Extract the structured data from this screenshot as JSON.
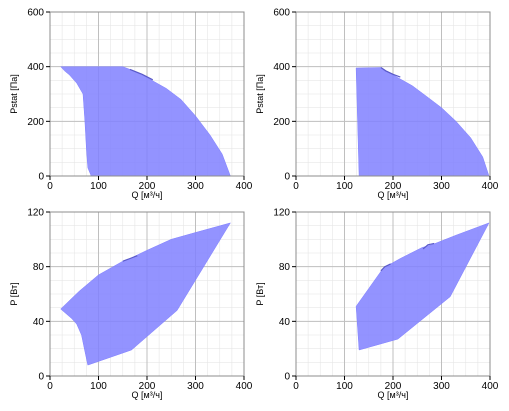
{
  "style": {
    "fill_color": "#8080ff",
    "fill_opacity": 0.85,
    "edge_color": "#5a5ac8",
    "grid_major_color": "#bfbfbf",
    "grid_minor_color": "#e6e6e6",
    "frame_color": "#8c8c8c"
  },
  "chart_data": [
    {
      "type": "area",
      "xlabel": "Q [м³/ч]",
      "ylabel": "Pstat [Па]",
      "xlim": [
        0,
        400
      ],
      "ylim": [
        0,
        600
      ],
      "xticks": [
        0,
        100,
        200,
        300,
        400
      ],
      "yticks": [
        0,
        200,
        400,
        600
      ],
      "xminor": 25,
      "yminor": 50,
      "grid": true,
      "region": [
        [
          22,
          400
        ],
        [
          150,
          400
        ],
        [
          165,
          390
        ],
        [
          200,
          360
        ],
        [
          240,
          320
        ],
        [
          270,
          280
        ],
        [
          300,
          220
        ],
        [
          330,
          150
        ],
        [
          355,
          80
        ],
        [
          372,
          0
        ],
        [
          85,
          0
        ],
        [
          78,
          30
        ],
        [
          75,
          100
        ],
        [
          72,
          200
        ],
        [
          68,
          300
        ],
        [
          55,
          340
        ],
        [
          40,
          370
        ],
        [
          30,
          385
        ]
      ],
      "ridges": [
        [
          [
            165,
            390
          ],
          [
            190,
            372
          ],
          [
            212,
            352
          ]
        ]
      ]
    },
    {
      "type": "area",
      "xlabel": "Q [м³/ч]",
      "ylabel": "Pstat [Па]",
      "xlim": [
        0,
        400
      ],
      "ylim": [
        0,
        600
      ],
      "xticks": [
        0,
        100,
        200,
        300,
        400
      ],
      "yticks": [
        0,
        200,
        400,
        600
      ],
      "xminor": 25,
      "yminor": 50,
      "grid": true,
      "region": [
        [
          124,
          395
        ],
        [
          175,
          397
        ],
        [
          182,
          385
        ],
        [
          200,
          370
        ],
        [
          240,
          330
        ],
        [
          270,
          290
        ],
        [
          300,
          250
        ],
        [
          330,
          200
        ],
        [
          360,
          140
        ],
        [
          385,
          70
        ],
        [
          398,
          0
        ],
        [
          130,
          0
        ]
      ],
      "ridges": [
        [
          [
            175,
            397
          ],
          [
            185,
            385
          ],
          [
            200,
            372
          ],
          [
            215,
            362
          ]
        ]
      ]
    },
    {
      "type": "area",
      "xlabel": "Q [м³/ч]",
      "ylabel": "P [Вт]",
      "xlim": [
        0,
        400
      ],
      "ylim": [
        0,
        120
      ],
      "xticks": [
        0,
        100,
        200,
        300,
        400
      ],
      "yticks": [
        0,
        40,
        80,
        120
      ],
      "xminor": 25,
      "yminor": 10,
      "grid": true,
      "region": [
        [
          22,
          49
        ],
        [
          60,
          62
        ],
        [
          100,
          74
        ],
        [
          150,
          84
        ],
        [
          165,
          86
        ],
        [
          200,
          92
        ],
        [
          250,
          100
        ],
        [
          300,
          105
        ],
        [
          372,
          112
        ],
        [
          262,
          48
        ],
        [
          168,
          19
        ],
        [
          78,
          8
        ],
        [
          72,
          18
        ],
        [
          65,
          30
        ],
        [
          55,
          38
        ],
        [
          45,
          42
        ]
      ],
      "ridges": [
        [
          [
            150,
            84
          ],
          [
            165,
            86
          ],
          [
            180,
            88
          ]
        ]
      ]
    },
    {
      "type": "area",
      "xlabel": "Q [м³/ч]",
      "ylabel": "P [Вт]",
      "xlim": [
        0,
        400
      ],
      "ylim": [
        0,
        120
      ],
      "xticks": [
        0,
        100,
        200,
        300,
        400
      ],
      "yticks": [
        0,
        40,
        80,
        120
      ],
      "xminor": 25,
      "yminor": 10,
      "grid": true,
      "region": [
        [
          124,
          51
        ],
        [
          180,
          79
        ],
        [
          215,
          86
        ],
        [
          260,
          94
        ],
        [
          280,
          96
        ],
        [
          330,
          103
        ],
        [
          398,
          112
        ],
        [
          318,
          58
        ],
        [
          210,
          27
        ],
        [
          130,
          19
        ]
      ],
      "ridges": [
        [
          [
            175,
            77
          ],
          [
            183,
            80
          ],
          [
            195,
            82
          ]
        ],
        [
          [
            262,
            93
          ],
          [
            272,
            96
          ],
          [
            285,
            97
          ]
        ]
      ]
    }
  ]
}
